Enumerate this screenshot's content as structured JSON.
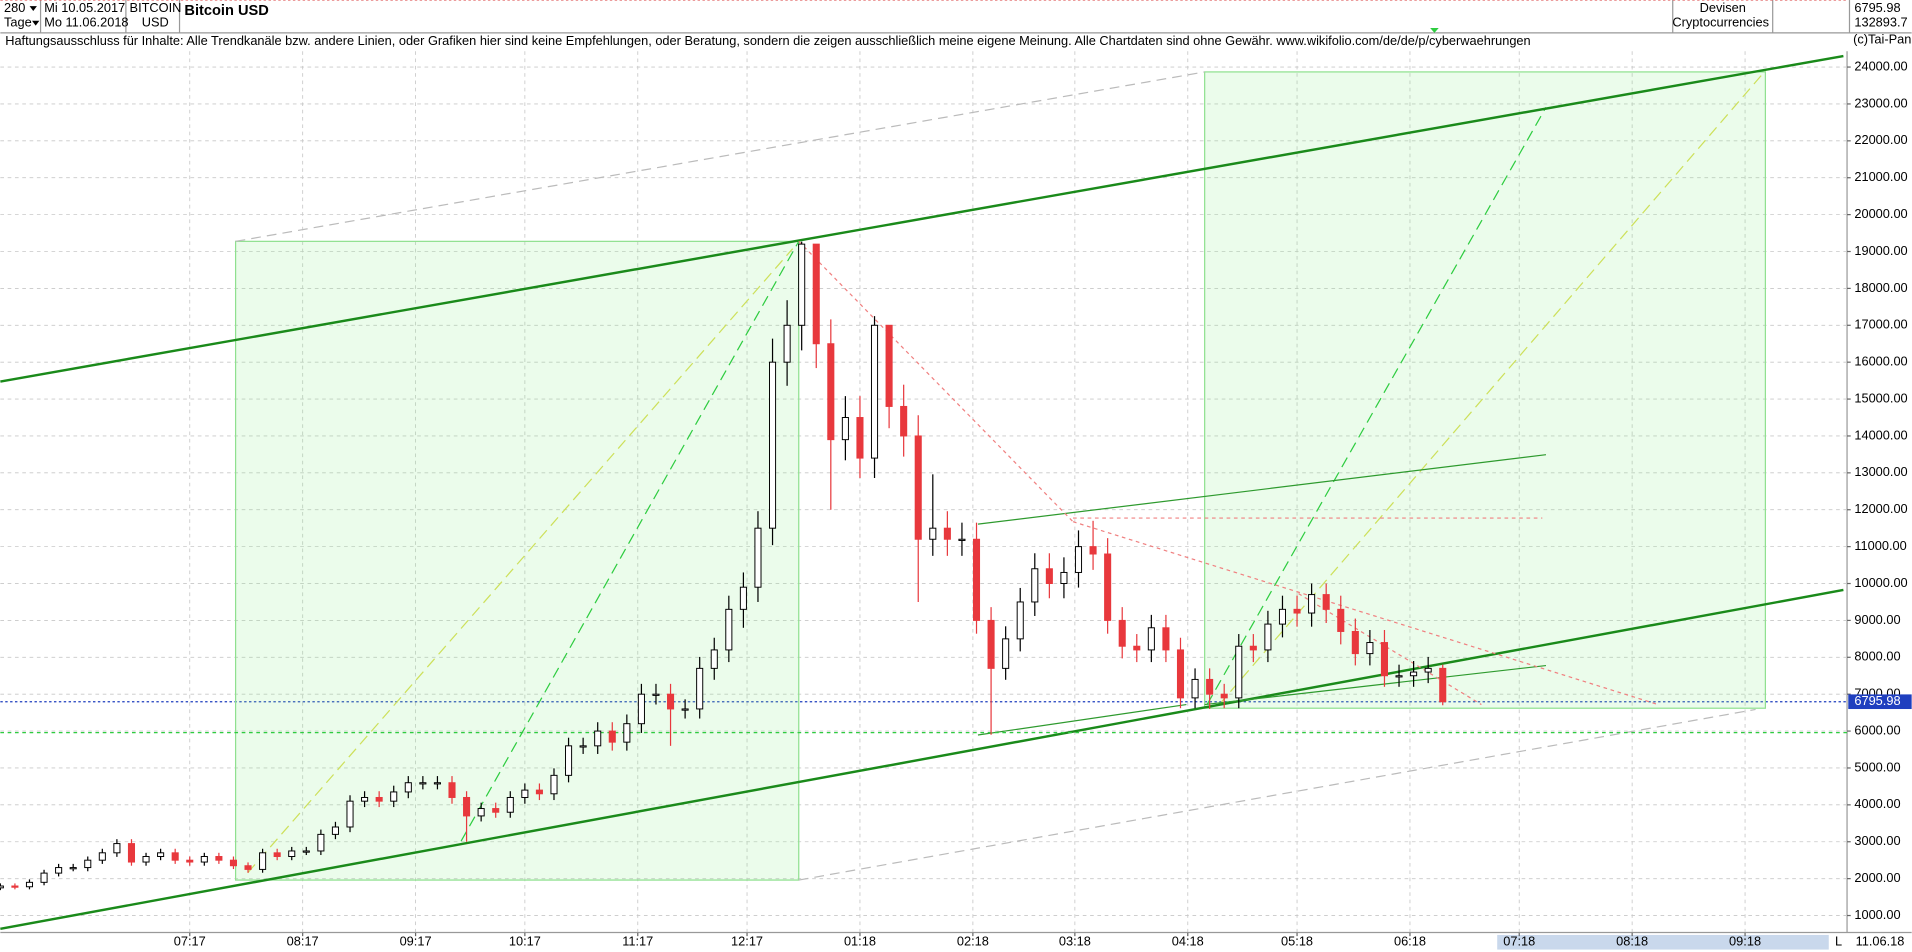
{
  "chart_data": {
    "type": "candlestick",
    "title": "Bitcoin USD",
    "period": "280",
    "period_unit": "Tage",
    "start_date": "Mi 10.05.2017",
    "end_date": "Mo 11.06.2018",
    "symbol": "BITCOIN",
    "currency": "USD",
    "market": "Devisen",
    "group": "Cryptocurrencies",
    "high": [
      1870,
      1870,
      1980,
      2240,
      2400,
      2400,
      2600,
      2810,
      3070,
      3070,
      2700,
      2810,
      2810,
      2600,
      2700,
      2700,
      2600,
      2440,
      2810,
      2810,
      2860,
      2860,
      3330,
      3540,
      4260,
      4370,
      4370,
      4520,
      4780,
      4780,
      4780,
      4780,
      4370,
      4060,
      4060,
      4370,
      4580,
      4580,
      4990,
      5820,
      5820,
      6240,
      6240,
      6450,
      7280,
      7280,
      7280,
      6860,
      8010,
      8530,
      9670,
      10300,
      11960,
      16640,
      17680,
      19266,
      19100,
      17160,
      15080,
      15080,
      17250,
      17000,
      15390,
      14560,
      12960,
      11960,
      11650,
      11650,
      9360,
      8840,
      9880,
      10820,
      10820,
      10710,
      11440,
      11700,
      11230,
      9360,
      8630,
      9150,
      9150,
      8530,
      7700,
      7700,
      7280,
      8630,
      8630,
      9260,
      9670,
      9670,
      10000,
      10000,
      9670,
      9050,
      8740,
      8740,
      7800,
      7900,
      8010,
      7800
    ],
    "low": [
      1690,
      1710,
      1710,
      1820,
      2060,
      2200,
      2200,
      2400,
      2590,
      2350,
      2350,
      2500,
      2400,
      2350,
      2350,
      2400,
      2260,
      2160,
      2160,
      2500,
      2500,
      2640,
      2640,
      3070,
      3260,
      3940,
      3940,
      3940,
      4180,
      4420,
      4420,
      4030,
      3000,
      3550,
      3650,
      3650,
      4030,
      4130,
      4130,
      4610,
      5380,
      5380,
      5470,
      5470,
      5950,
      6720,
      5600,
      6340,
      6340,
      7390,
      7870,
      8800,
      9500,
      11040,
      15360,
      16320,
      15840,
      12000,
      13340,
      12860,
      12860,
      14210,
      13440,
      9500,
      10750,
      10750,
      10750,
      8640,
      5900,
      7390,
      8160,
      9120,
      9600,
      9600,
      9890,
      10370,
      8640,
      7970,
      7870,
      7870,
      7870,
      6620,
      6620,
      6600,
      6620,
      6620,
      7870,
      7870,
      8540,
      8830,
      8830,
      8930,
      8350,
      7780,
      7780,
      7200,
      7200,
      7200,
      7300,
      6700
    ],
    "last": 6795.98,
    "volume": 132893.7,
    "disclaimer": "Haftungsausschluss für Inhalte: Alle Trendkanäle bzw. andere Linien, oder Grafiken hier sind keine Empfehlungen, oder Beratung, sondern die zeigen ausschließlich meine eigene Meinung. Alle Chartdaten sind ohne Gewähr.  www.wikifolio.com/de/de/p/cyberwaehrungen",
    "copyright": "(c)Tai-Pan",
    "axis_end_date": "11.06.18",
    "scale_mode": "L",
    "up_color": "#ffffff",
    "down_color": "#e8383d",
    "x": [
      0,
      4,
      8,
      12,
      16,
      20,
      24,
      28,
      32,
      36,
      40,
      44,
      48,
      52,
      56,
      60,
      64,
      68,
      72,
      76,
      80,
      84,
      88,
      92,
      96,
      100,
      104,
      108,
      112,
      116,
      120,
      124,
      128,
      132,
      136,
      140,
      144,
      148,
      152,
      156,
      160,
      164,
      168,
      172,
      176,
      180,
      184,
      188,
      192,
      196,
      200,
      204,
      208,
      212,
      216,
      220,
      224,
      228,
      232,
      236,
      240,
      244,
      248,
      252,
      256,
      260,
      264,
      268,
      272,
      276,
      280,
      284,
      288,
      292,
      296,
      300,
      304,
      308,
      312,
      316,
      320,
      324,
      328,
      332,
      336,
      340,
      344,
      348,
      352,
      356,
      360,
      364,
      368,
      372,
      376,
      380,
      384,
      388,
      392,
      396
    ],
    "open": [
      1750,
      1800,
      1780,
      1900,
      2150,
      2300,
      2300,
      2500,
      2700,
      2950,
      2450,
      2600,
      2700,
      2500,
      2450,
      2600,
      2500,
      2350,
      2250,
      2700,
      2600,
      2750,
      2750,
      3200,
      3400,
      4100,
      4200,
      4100,
      4350,
      4600,
      4600,
      4600,
      4200,
      3700,
      3900,
      3800,
      4200,
      4400,
      4300,
      4800,
      5600,
      5600,
      6000,
      5700,
      6200,
      7000,
      7000,
      6600,
      6600,
      7700,
      8200,
      9300,
      9900,
      11500,
      16000,
      17000,
      19200,
      16500,
      13900,
      14500,
      13400,
      17000,
      14800,
      14000,
      11200,
      11500,
      11200,
      11200,
      9000,
      7700,
      8500,
      9500,
      10400,
      10000,
      10300,
      11000,
      10800,
      9000,
      8300,
      8200,
      8800,
      8200,
      6900,
      7400,
      7000,
      6900,
      8300,
      8200,
      8900,
      9300,
      9200,
      9700,
      9300,
      8700,
      8100,
      8400,
      7500,
      7500,
      7600,
      7700
    ],
    "close": [
      1800,
      1780,
      1900,
      2150,
      2300,
      2300,
      2500,
      2700,
      2950,
      2450,
      2600,
      2700,
      2500,
      2450,
      2600,
      2500,
      2350,
      2250,
      2700,
      2600,
      2750,
      2750,
      3200,
      3400,
      4100,
      4200,
      4100,
      4350,
      4600,
      4600,
      4600,
      4200,
      3700,
      3900,
      3800,
      4200,
      4400,
      4300,
      4800,
      5600,
      5600,
      6000,
      5700,
      6200,
      7000,
      7000,
      6600,
      6600,
      7700,
      8200,
      9300,
      9900,
      11500,
      16000,
      17000,
      19200,
      16500,
      13900,
      14500,
      13400,
      17000,
      14800,
      14000,
      11200,
      11500,
      11200,
      11200,
      9000,
      7700,
      8500,
      9500,
      10400,
      10000,
      10300,
      11000,
      10800,
      9000,
      8300,
      8200,
      8800,
      8200,
      6900,
      7400,
      7000,
      6900,
      8300,
      8200,
      8900,
      9300,
      9200,
      9700,
      9300,
      8700,
      8100,
      8400,
      7500,
      7500,
      7600,
      7700,
      6796
    ],
    "xlim": [
      0,
      507
    ],
    "xticks": [
      {
        "value": 52,
        "label": "07:17"
      },
      {
        "value": 83,
        "label": "08:17"
      },
      {
        "value": 114,
        "label": "09:17"
      },
      {
        "value": 144,
        "label": "10:17"
      },
      {
        "value": 175,
        "label": "11:17"
      },
      {
        "value": 205,
        "label": "12:17"
      },
      {
        "value": 236,
        "label": "01:18"
      },
      {
        "value": 267,
        "label": "02:18"
      },
      {
        "value": 295,
        "label": "03:18"
      },
      {
        "value": 326,
        "label": "04:18"
      },
      {
        "value": 356,
        "label": "05:18"
      },
      {
        "value": 387,
        "label": "06:18"
      },
      {
        "value": 417,
        "label": "07:18"
      },
      {
        "value": 448,
        "label": "08:18"
      },
      {
        "value": 479,
        "label": "09:18"
      }
    ],
    "ylim": [
      540,
      24430
    ],
    "yticks": [
      {
        "value": 1000,
        "label": "1000.00"
      },
      {
        "value": 2000,
        "label": "2000.00"
      },
      {
        "value": 3000,
        "label": "3000.00"
      },
      {
        "value": 4000,
        "label": "4000.00"
      },
      {
        "value": 5000,
        "label": "5000.00"
      },
      {
        "value": 6000,
        "label": "6000.00"
      },
      {
        "value": 7000,
        "label": "7000.00"
      },
      {
        "value": 8000,
        "label": "8000.00"
      },
      {
        "value": 9000,
        "label": "9000.00"
      },
      {
        "value": 10000,
        "label": "10000.00"
      },
      {
        "value": 11000,
        "label": "11000.00"
      },
      {
        "value": 12000,
        "label": "12000.00"
      },
      {
        "value": 13000,
        "label": "13000.00"
      },
      {
        "value": 14000,
        "label": "14000.00"
      },
      {
        "value": 15000,
        "label": "15000.00"
      },
      {
        "value": 16000,
        "label": "16000.00"
      },
      {
        "value": 17000,
        "label": "17000.00"
      },
      {
        "value": 18000,
        "label": "18000.00"
      },
      {
        "value": 19000,
        "label": "19000.00"
      },
      {
        "value": 20000,
        "label": "20000.00"
      },
      {
        "value": 21000,
        "label": "21000.00"
      },
      {
        "value": 22000,
        "label": "22000.00"
      },
      {
        "value": 23000,
        "label": "23000.00"
      },
      {
        "value": 24000,
        "label": "24000.00"
      }
    ],
    "grid": true
  }
}
